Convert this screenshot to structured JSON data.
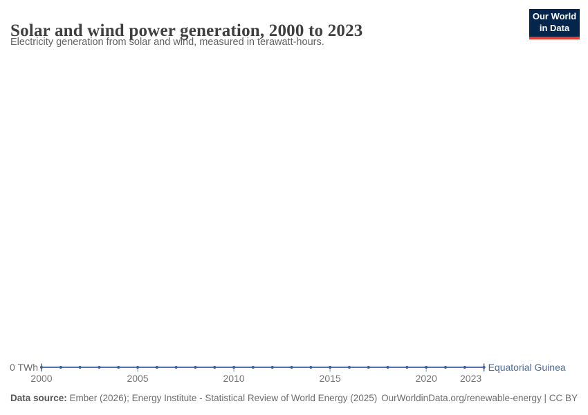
{
  "header": {
    "title": "Solar and wind power generation, 2000 to 2023",
    "subtitle": "Electricity generation from solar and wind, measured in terawatt-hours.",
    "logo": {
      "line1": "Our World",
      "line2": "in Data",
      "bg_color": "#05264c",
      "accent_color": "#e23d33"
    }
  },
  "chart_data": {
    "type": "line",
    "title": "Solar and wind power generation, 2000 to 2023",
    "xlabel": "",
    "ylabel": "TWh",
    "xlim": [
      2000,
      2023
    ],
    "ylim": [
      0,
      0
    ],
    "grid": false,
    "legend_position": "end-of-line",
    "x_ticks": [
      2000,
      2005,
      2010,
      2015,
      2020,
      2023
    ],
    "y_axis_label": "0 TWh",
    "series": [
      {
        "name": "Equatorial Guinea",
        "unit": "TWh",
        "color": "#4c6a9c",
        "x": [
          2000,
          2001,
          2002,
          2003,
          2004,
          2005,
          2006,
          2007,
          2008,
          2009,
          2010,
          2011,
          2012,
          2013,
          2014,
          2015,
          2016,
          2017,
          2018,
          2019,
          2020,
          2021,
          2022,
          2023
        ],
        "values": [
          0,
          0,
          0,
          0,
          0,
          0,
          0,
          0,
          0,
          0,
          0,
          0,
          0,
          0,
          0,
          0,
          0,
          0,
          0,
          0,
          0,
          0,
          0,
          0
        ]
      }
    ],
    "line_color": "#5273ab",
    "marker_color": "#40609d",
    "tick_mark_color": "#a3b1cb",
    "entity_label_color": "#4c6a9c"
  },
  "footer": {
    "source_label": "Data source:",
    "source_text": " Ember (2026); Energy Institute - Statistical Review of World Energy (2025)",
    "rights": "OurWorldinData.org/renewable-energy | CC BY"
  }
}
